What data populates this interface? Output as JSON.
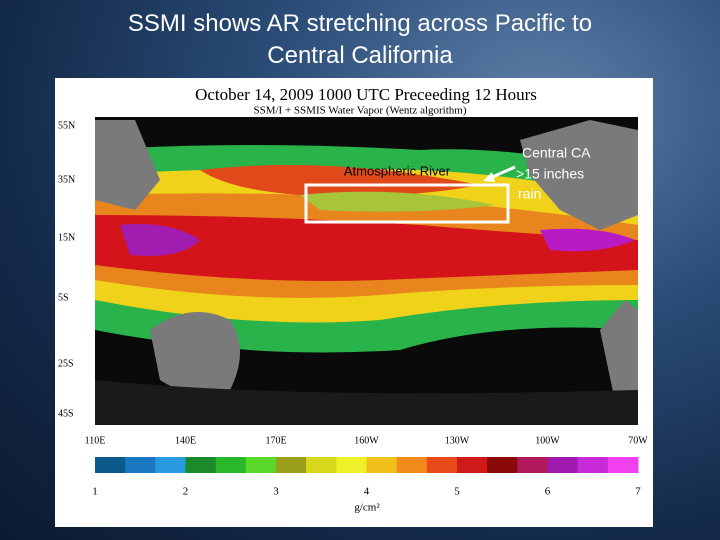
{
  "slide": {
    "title_lines": [
      "SSMI shows AR stretching across Pacific to",
      "Central California"
    ],
    "map": {
      "heading": "October 14, 2009  1000 UTC  Preceeding 12 Hours",
      "subheading": "SSM/I + SSMIS Water Vapor (Wentz algorithm)",
      "lat_labels": [
        "55N",
        "35N",
        "15N",
        "5S",
        "25S",
        "45S"
      ],
      "lon_labels": [
        "110E",
        "140E",
        "170E",
        "160W",
        "130W",
        "100W",
        "70W"
      ],
      "colorbar_labels": [
        "1",
        "2",
        "3",
        "4",
        "5",
        "6",
        "7"
      ],
      "colorbar_unit": "g/cm²"
    },
    "annotations": {
      "river": "Atmospheric River",
      "california_lines": [
        "Central CA",
        ">15 inches",
        "rain"
      ]
    }
  }
}
